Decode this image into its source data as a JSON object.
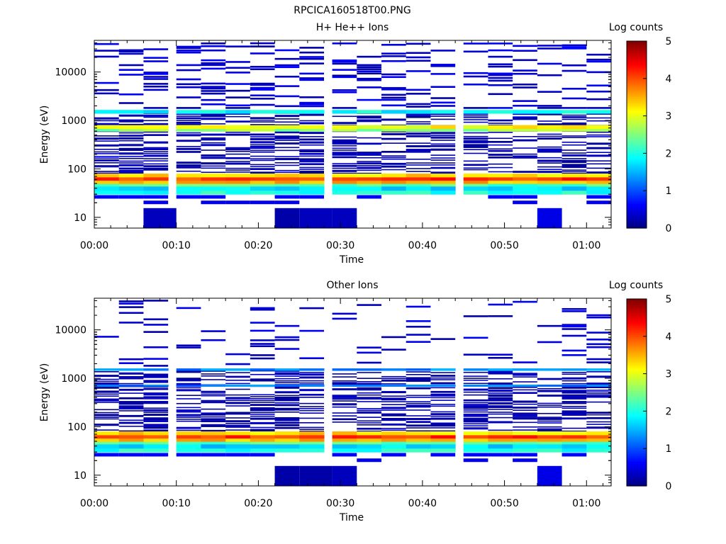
{
  "figure": {
    "title": "RPCICA160518T00.PNG"
  },
  "chart_data": [
    {
      "type": "heatmap",
      "title": "H+ He++ Ions",
      "xlabel": "Time",
      "ylabel": "Energy (eV)",
      "x_ticks": [
        "00:00",
        "00:10",
        "00:20",
        "00:30",
        "00:40",
        "00:50",
        "01:00"
      ],
      "y_ticks": [
        "10",
        "100",
        "1000",
        "10000"
      ],
      "y_scale": "log",
      "ylim": [
        6,
        45000
      ],
      "colorbar": {
        "label": "Log counts",
        "ticks": [
          "0",
          "1",
          "2",
          "3",
          "4",
          "5"
        ],
        "range": [
          0,
          5
        ],
        "colormap": "jet"
      },
      "time_bins": [
        "00:00",
        "00:03",
        "00:06",
        "00:10",
        "00:13",
        "00:16",
        "00:19",
        "00:22",
        "00:25",
        "00:29",
        "00:32",
        "00:35",
        "00:38",
        "00:41",
        "00:45",
        "00:48",
        "00:51",
        "00:54",
        "00:57",
        "01:00"
      ],
      "bands": [
        {
          "e_min": 30,
          "e_max": 36,
          "value": 2.0
        },
        {
          "e_min": 36,
          "e_max": 44,
          "value": 1.7
        },
        {
          "e_min": 44,
          "e_max": 50,
          "value": 2.3
        },
        {
          "e_min": 50,
          "e_max": 58,
          "value": 3.5
        },
        {
          "e_min": 58,
          "e_max": 68,
          "value": 4.1
        },
        {
          "e_min": 68,
          "e_max": 80,
          "value": 3.3
        },
        {
          "e_min": 600,
          "e_max": 680,
          "value": 2.6
        },
        {
          "e_min": 680,
          "e_max": 800,
          "value": 3.1
        },
        {
          "e_min": 1400,
          "e_max": 1650,
          "value": 1.9
        }
      ],
      "low_e_blocks": [
        {
          "t_start": "00:06",
          "t_end": "00:10",
          "value": 0.3
        },
        {
          "t_start": "00:22",
          "t_end": "00:25",
          "value": 0.2
        },
        {
          "t_start": "00:25",
          "t_end": "00:29",
          "value": 0.3
        },
        {
          "t_start": "00:29",
          "t_end": "00:32",
          "value": 0.3
        },
        {
          "t_start": "00:54",
          "t_end": "00:57",
          "value": 0.5
        }
      ]
    },
    {
      "type": "heatmap",
      "title": "Other Ions",
      "xlabel": "Time",
      "ylabel": "Energy (eV)",
      "x_ticks": [
        "00:00",
        "00:10",
        "00:20",
        "00:30",
        "00:40",
        "00:50",
        "01:00"
      ],
      "y_ticks": [
        "10",
        "100",
        "1000",
        "10000"
      ],
      "y_scale": "log",
      "ylim": [
        6,
        45000
      ],
      "colorbar": {
        "label": "Log counts",
        "ticks": [
          "0",
          "1",
          "2",
          "3",
          "4",
          "5"
        ],
        "range": [
          0,
          5
        ],
        "colormap": "jet"
      },
      "time_bins": [
        "00:00",
        "00:03",
        "00:06",
        "00:10",
        "00:13",
        "00:16",
        "00:19",
        "00:22",
        "00:25",
        "00:29",
        "00:32",
        "00:35",
        "00:38",
        "00:41",
        "00:45",
        "00:48",
        "00:51",
        "00:54",
        "00:57",
        "01:00"
      ],
      "bands": [
        {
          "e_min": 30,
          "e_max": 36,
          "value": 2.0
        },
        {
          "e_min": 36,
          "e_max": 44,
          "value": 1.7
        },
        {
          "e_min": 44,
          "e_max": 50,
          "value": 2.3
        },
        {
          "e_min": 50,
          "e_max": 58,
          "value": 3.5
        },
        {
          "e_min": 58,
          "e_max": 68,
          "value": 4.1
        },
        {
          "e_min": 68,
          "e_max": 80,
          "value": 3.3
        },
        {
          "e_min": 680,
          "e_max": 740,
          "value": 1.2
        },
        {
          "e_min": 1450,
          "e_max": 1600,
          "value": 1.3
        }
      ],
      "low_e_blocks": [
        {
          "t_start": "00:22",
          "t_end": "00:25",
          "value": 0.2
        },
        {
          "t_start": "00:25",
          "t_end": "00:29",
          "value": 0.2
        },
        {
          "t_start": "00:29",
          "t_end": "00:32",
          "value": 0.3
        },
        {
          "t_start": "00:54",
          "t_end": "00:57",
          "value": 0.5
        }
      ]
    }
  ]
}
